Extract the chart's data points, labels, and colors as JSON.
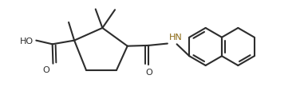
{
  "bg_color": "#ffffff",
  "line_color": "#2d2d2d",
  "bond_lw": 1.5,
  "font_size": 8.0,
  "fig_width": 3.86,
  "fig_height": 1.15,
  "dpi": 100,
  "nh_color": "#8B6914",
  "xlim": [
    0.5,
    9.8
  ],
  "ylim": [
    0.1,
    3.0
  ]
}
